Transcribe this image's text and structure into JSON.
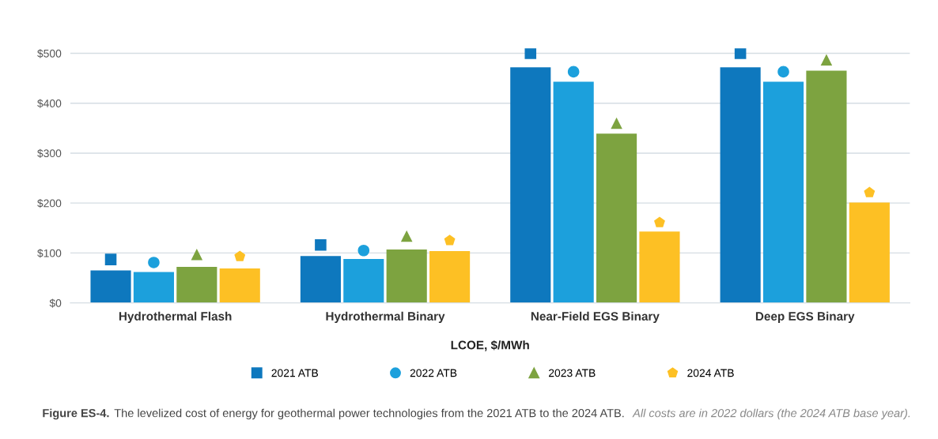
{
  "chart_data": {
    "type": "bar",
    "xlabel": "LCOE, $/MWh",
    "categories": [
      "Hydrothermal Flash",
      "Hydrothermal Binary",
      "Near-Field EGS Binary",
      "Deep EGS Binary"
    ],
    "series": [
      {
        "color": "#0e78be",
        "values": [
          65,
          94,
          472,
          472
        ]
      },
      {
        "color": "#1ca0dc",
        "values": [
          62,
          88,
          443,
          443
        ]
      },
      {
        "color": "#7da340",
        "values": [
          72,
          107,
          339,
          465
        ]
      },
      {
        "color": "#fdc024",
        "values": [
          69,
          104,
          143,
          201
        ]
      },
      {
        "type": "scatter",
        "name": "2021 ATB",
        "marker": "square",
        "color": "#0e78be",
        "x": [
          "Hydrothermal Flash",
          "Hydrothermal Binary",
          "Near-Field EGS Binary",
          "Deep EGS Binary"
        ],
        "values": [
          87,
          116,
          500,
          500
        ]
      },
      {
        "type": "scatter",
        "name": "2022 ATB",
        "marker": "circle",
        "color": "#1ca0dc",
        "x": [
          "Hydrothermal Flash",
          "Hydrothermal Binary",
          "Near-Field EGS Binary",
          "Deep EGS Binary"
        ],
        "values": [
          81,
          105,
          463,
          463
        ]
      },
      {
        "type": "scatter",
        "name": "2023 ATB",
        "marker": "triangle",
        "color": "#7da340",
        "x": [
          "Hydrothermal Flash",
          "Hydrothermal Binary",
          "Near-Field EGS Binary",
          "Deep EGS Binary"
        ],
        "values": [
          97,
          134,
          360,
          487
        ]
      },
      {
        "type": "scatter",
        "name": "2024 ATB",
        "color": "#fdc024",
        "x": [
          "Hydrothermal Flash",
          "Hydrothermal Binary",
          "Near-Field EGS Binary",
          "Deep EGS Binary"
        ],
        "values": [
          93,
          125,
          161,
          221
        ]
      }
    ],
    "ylim": [
      0,
      510
    ],
    "yticks": [
      {
        "value": 0,
        "label": "$0"
      },
      {
        "value": 100,
        "label": "$100"
      },
      {
        "value": 200,
        "label": "$200"
      },
      {
        "value": 300,
        "label": "$300"
      },
      {
        "value": 400,
        "label": "$400"
      },
      {
        "value": 500,
        "label": "$500"
      }
    ],
    "grid": "y",
    "legend": "bottom",
    "annotations": [
      "Figure ES-4.",
      "The levelized cost of energy for geothermal power technologies from the 2021 ATB to the 2024 ATB.",
      "All costs are in 2022 dollars (the 2024 ATB base year)."
    ]
  }
}
